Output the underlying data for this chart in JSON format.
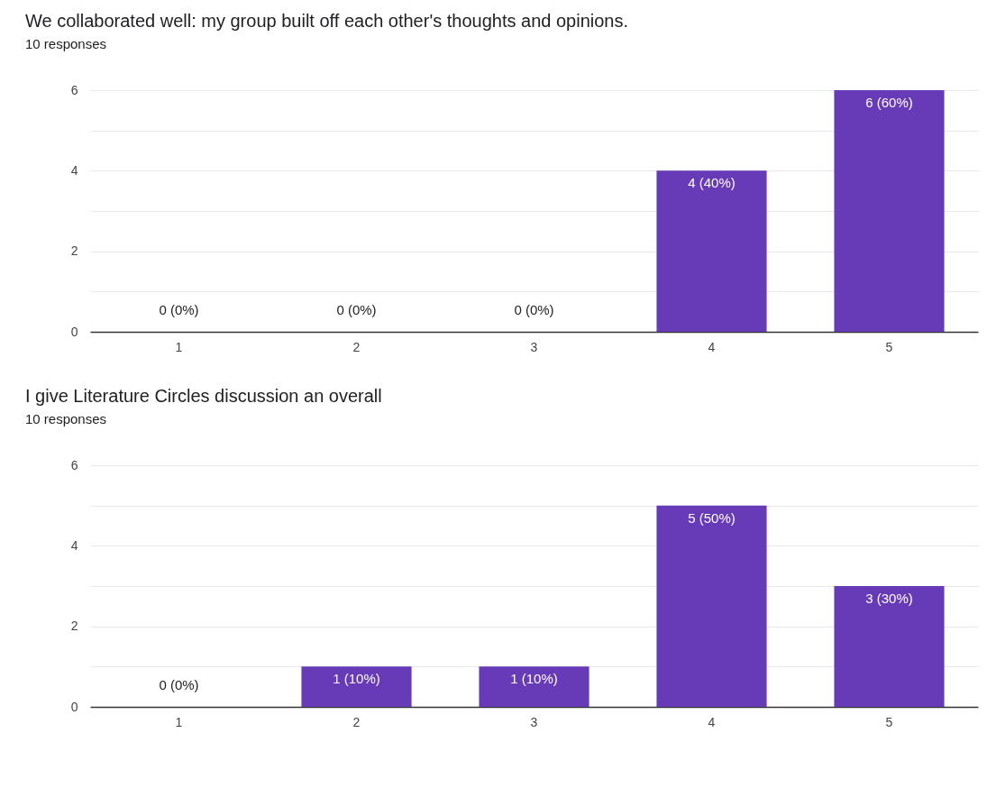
{
  "chart_data": [
    {
      "type": "bar",
      "title": "We collaborated well: my group built off each other's thoughts and opinions.",
      "subtitle": "10 responses",
      "categories": [
        "1",
        "2",
        "3",
        "4",
        "5"
      ],
      "values": [
        0,
        0,
        0,
        4,
        6
      ],
      "value_labels": [
        "0 (0%)",
        "0 (0%)",
        "0 (0%)",
        "4 (40%)",
        "6 (60%)"
      ],
      "color": "#673ab7",
      "ylim": [
        0,
        6
      ],
      "yticks": [
        0,
        {
          "value": 1,
          "label": null
        },
        2,
        {
          "value": 3,
          "label": null
        },
        4,
        {
          "value": 5,
          "label": null
        },
        6
      ],
      "grid": true
    },
    {
      "type": "bar",
      "title": "I give Literature Circles discussion an overall",
      "subtitle": "10 responses",
      "categories": [
        "1",
        "2",
        "3",
        "4",
        "5"
      ],
      "values": [
        0,
        1,
        1,
        5,
        3
      ],
      "value_labels": [
        "0 (0%)",
        "1 (10%)",
        "1 (10%)",
        "5 (50%)",
        "3 (30%)"
      ],
      "color": "#673ab7",
      "ylim": [
        0,
        6
      ],
      "yticks": [
        0,
        {
          "value": 1,
          "label": null
        },
        2,
        {
          "value": 3,
          "label": null
        },
        4,
        {
          "value": 5,
          "label": null
        },
        6
      ],
      "grid": true
    }
  ]
}
